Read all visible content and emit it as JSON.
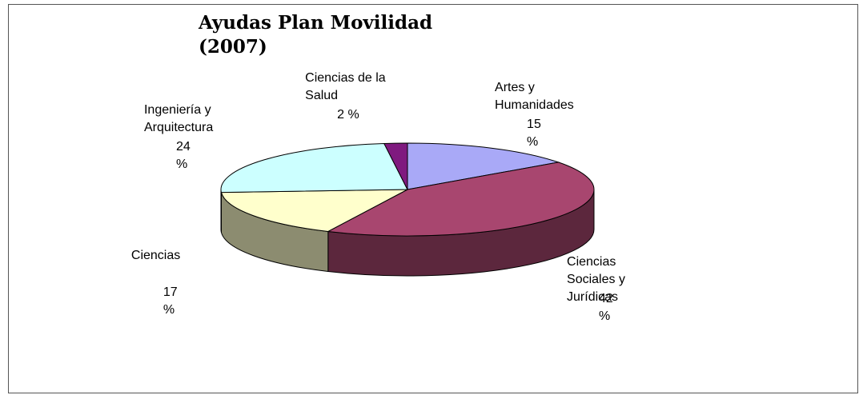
{
  "chart_data": {
    "type": "pie3d",
    "title": "Ayudas Plan Movilidad (2007)",
    "categories": [
      "Artes y Humanidades",
      "Ciencias Sociales y Jurídicas",
      "Ciencias",
      "Ingeniería y Arquitectura",
      "Ciencias de la Salud"
    ],
    "values": [
      15,
      42,
      17,
      24,
      2
    ],
    "value_labels": [
      "15 %",
      "42 %",
      "17 %",
      "24 %",
      "2 %"
    ],
    "colors": [
      "#a9a9f7",
      "#a8466f",
      "#ffffcc",
      "#ccffff",
      "#7f1a7f"
    ]
  }
}
